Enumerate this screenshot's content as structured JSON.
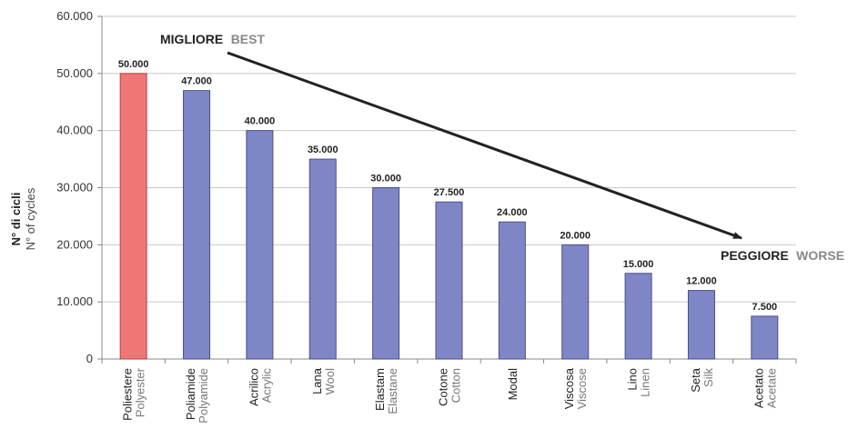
{
  "chart_data": {
    "type": "bar",
    "categories": [
      {
        "it": "Poliestere",
        "en": "Polyester"
      },
      {
        "it": "Poliamide",
        "en": "Polyamide"
      },
      {
        "it": "Acrilico",
        "en": "Acrylic"
      },
      {
        "it": "Lana",
        "en": "Wool"
      },
      {
        "it": "Elastam",
        "en": "Elastane"
      },
      {
        "it": "Cotone",
        "en": "Cotton"
      },
      {
        "it": "Modal",
        "en": ""
      },
      {
        "it": "Viscosa",
        "en": "Viscose"
      },
      {
        "it": "Lino",
        "en": "Linen"
      },
      {
        "it": "Seta",
        "en": "Silk"
      },
      {
        "it": "Acetato",
        "en": "Acetate"
      }
    ],
    "values": [
      50000,
      47000,
      40000,
      35000,
      30000,
      27500,
      24000,
      20000,
      15000,
      12000,
      7500
    ],
    "value_labels": [
      "50.000",
      "47.000",
      "40.000",
      "35.000",
      "30.000",
      "27.500",
      "24.000",
      "20.000",
      "15.000",
      "12.000",
      "7.500"
    ],
    "highlight_index": 0,
    "colors": {
      "bar": "#7f86c6",
      "highlight": "#ef7676",
      "bar_stroke": "#4a4f8a",
      "highlight_stroke": "#b04444",
      "grid": "#c8c8c8",
      "arrow": "#222222"
    },
    "ylabel": {
      "it": "N° di cicli",
      "en": "N° of cycles"
    },
    "ylim": [
      0,
      60000
    ],
    "yticks": [
      0,
      10000,
      20000,
      30000,
      40000,
      50000,
      60000
    ],
    "ytick_labels": [
      "0",
      "10.000",
      "20.000",
      "30.000",
      "40.000",
      "50.000",
      "60.000"
    ],
    "grid": true,
    "annotations": {
      "best": {
        "strong": "MIGLIORE",
        "light": "BEST"
      },
      "worst": {
        "strong": "PEGGIORE",
        "light": "WORSE"
      }
    }
  }
}
